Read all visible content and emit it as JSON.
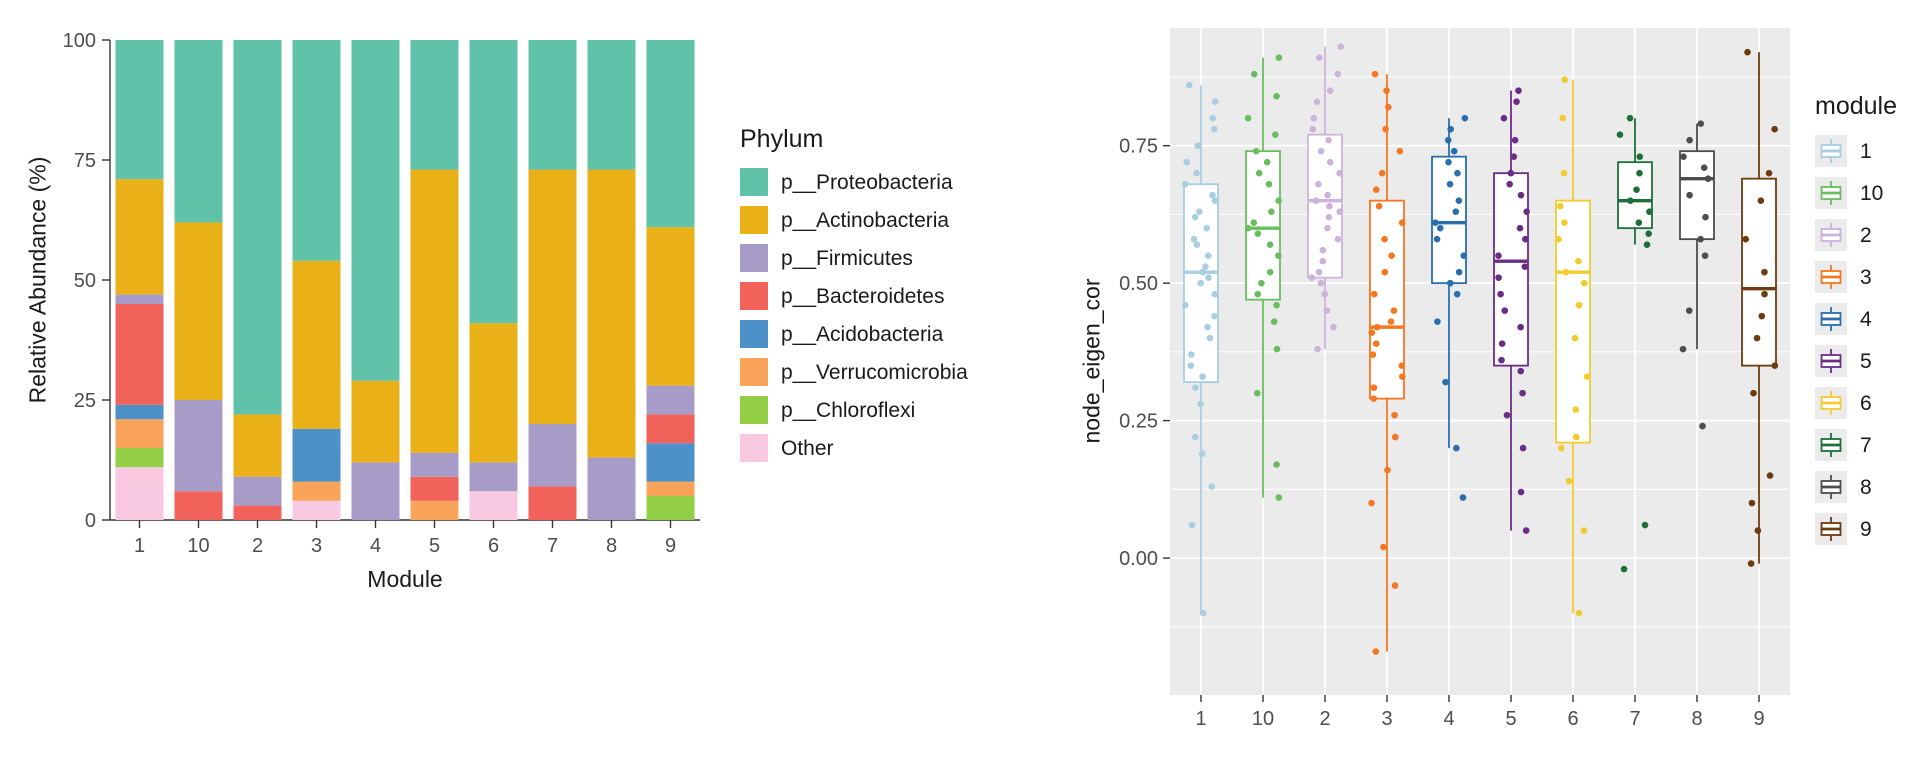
{
  "page": {
    "background": "#FFFFFF"
  },
  "chart_data": [
    {
      "type": "bar",
      "stacked": true,
      "title": "",
      "xlabel": "Module",
      "ylabel": "Relative Abundance (%)",
      "ylim": [
        0,
        100
      ],
      "yticks": [
        {
          "value": 0,
          "label": "0"
        },
        {
          "value": 25,
          "label": "25"
        },
        {
          "value": 50,
          "label": "50"
        },
        {
          "value": 75,
          "label": "75"
        },
        {
          "value": 100,
          "label": "100"
        }
      ],
      "categories": [
        "1",
        "10",
        "2",
        "3",
        "4",
        "5",
        "6",
        "7",
        "8",
        "9"
      ],
      "legend_title": "Phylum",
      "legend_position": "right",
      "grid": false,
      "panel_background": "#FFFFFF",
      "axis_line_color": "#333333",
      "tick_label_color": "#4D4D4D",
      "series": [
        {
          "name": "p__Proteobacteria",
          "color": "#60C2A8",
          "values": [
            29,
            38,
            78,
            46,
            71,
            27,
            59,
            27,
            27,
            39
          ]
        },
        {
          "name": "p__Actinobacteria",
          "color": "#E9B017",
          "values": [
            24,
            37,
            13,
            35,
            17,
            59,
            29,
            53,
            60,
            33
          ]
        },
        {
          "name": "p__Firmicutes",
          "color": "#A79CC8",
          "values": [
            2,
            19,
            6,
            0,
            12,
            5,
            6,
            13,
            13,
            6
          ]
        },
        {
          "name": "p__Bacteroidetes",
          "color": "#F0625A",
          "values": [
            21,
            6,
            3,
            0,
            0,
            5,
            0,
            7,
            0,
            6
          ]
        },
        {
          "name": "p__Acidobacteria",
          "color": "#4D91C9",
          "values": [
            3,
            0,
            0,
            11,
            0,
            0,
            0,
            0,
            0,
            8
          ]
        },
        {
          "name": "p__Verrucomicrobia",
          "color": "#F9A35B",
          "values": [
            6,
            0,
            0,
            4,
            0,
            4,
            0,
            0,
            0,
            3
          ]
        },
        {
          "name": "p__Chloroflexi",
          "color": "#93CE47",
          "values": [
            4,
            0,
            0,
            0,
            0,
            0,
            0,
            0,
            0,
            5
          ]
        },
        {
          "name": "Other",
          "color": "#F9C9E1",
          "values": [
            11,
            0,
            0,
            4,
            0,
            0,
            6,
            0,
            0,
            0
          ]
        }
      ],
      "stack_order": "bottom-to-top is reverse of legend order"
    },
    {
      "type": "boxplot",
      "title": "",
      "xlabel": "",
      "ylabel": "node_eigen_cor",
      "ylim": [
        -0.249,
        0.964
      ],
      "yticks": [
        {
          "value": 0.0,
          "label": "0.00"
        },
        {
          "value": 0.25,
          "label": "0.25"
        },
        {
          "value": 0.5,
          "label": "0.50"
        },
        {
          "value": 0.75,
          "label": "0.75"
        }
      ],
      "categories": [
        "1",
        "10",
        "2",
        "3",
        "4",
        "5",
        "6",
        "7",
        "8",
        "9"
      ],
      "legend_title": "module",
      "legend_position": "right",
      "grid": true,
      "panel_background": "#EBEBEB",
      "grid_color": "#FFFFFF",
      "tick_label_color": "#4D4D4D",
      "groups": [
        {
          "label": "1",
          "color": "#A8CEE2",
          "box": {
            "whisker_low": -0.1,
            "q1": 0.32,
            "median": 0.52,
            "q3": 0.68,
            "whisker_high": 0.86
          },
          "points": [
            -0.1,
            0.06,
            0.13,
            0.19,
            0.22,
            0.28,
            0.31,
            0.33,
            0.35,
            0.37,
            0.4,
            0.42,
            0.44,
            0.46,
            0.48,
            0.5,
            0.51,
            0.52,
            0.53,
            0.55,
            0.57,
            0.58,
            0.6,
            0.62,
            0.63,
            0.65,
            0.66,
            0.68,
            0.7,
            0.72,
            0.75,
            0.78,
            0.8,
            0.83,
            0.86
          ]
        },
        {
          "label": "10",
          "color": "#6ABD5E",
          "box": {
            "whisker_low": 0.11,
            "q1": 0.47,
            "median": 0.6,
            "q3": 0.74,
            "whisker_high": 0.91
          },
          "points": [
            0.11,
            0.17,
            0.3,
            0.38,
            0.43,
            0.46,
            0.48,
            0.5,
            0.52,
            0.55,
            0.57,
            0.59,
            0.6,
            0.61,
            0.63,
            0.65,
            0.68,
            0.7,
            0.72,
            0.74,
            0.77,
            0.8,
            0.84,
            0.88,
            0.91
          ]
        },
        {
          "label": "2",
          "color": "#CDB3DB",
          "box": {
            "whisker_low": 0.38,
            "q1": 0.51,
            "median": 0.65,
            "q3": 0.77,
            "whisker_high": 0.93
          },
          "points": [
            0.38,
            0.42,
            0.45,
            0.48,
            0.5,
            0.51,
            0.52,
            0.54,
            0.56,
            0.58,
            0.6,
            0.62,
            0.63,
            0.64,
            0.65,
            0.66,
            0.68,
            0.7,
            0.72,
            0.74,
            0.76,
            0.78,
            0.8,
            0.83,
            0.85,
            0.88,
            0.91,
            0.93
          ]
        },
        {
          "label": "3",
          "color": "#F47721",
          "box": {
            "whisker_low": -0.17,
            "q1": 0.29,
            "median": 0.42,
            "q3": 0.65,
            "whisker_high": 0.88
          },
          "points": [
            -0.17,
            -0.05,
            0.02,
            0.1,
            0.16,
            0.22,
            0.26,
            0.29,
            0.31,
            0.33,
            0.35,
            0.37,
            0.39,
            0.41,
            0.42,
            0.43,
            0.45,
            0.48,
            0.52,
            0.55,
            0.58,
            0.61,
            0.64,
            0.67,
            0.7,
            0.74,
            0.78,
            0.82,
            0.85,
            0.88
          ]
        },
        {
          "label": "4",
          "color": "#2A6EAD",
          "box": {
            "whisker_low": 0.2,
            "q1": 0.5,
            "median": 0.61,
            "q3": 0.73,
            "whisker_high": 0.8
          },
          "points": [
            0.11,
            0.2,
            0.32,
            0.43,
            0.48,
            0.5,
            0.52,
            0.55,
            0.58,
            0.6,
            0.61,
            0.63,
            0.65,
            0.68,
            0.7,
            0.72,
            0.74,
            0.76,
            0.78,
            0.8
          ]
        },
        {
          "label": "5",
          "color": "#6A2C85",
          "box": {
            "whisker_low": 0.05,
            "q1": 0.35,
            "median": 0.54,
            "q3": 0.7,
            "whisker_high": 0.85
          },
          "points": [
            0.05,
            0.12,
            0.2,
            0.26,
            0.3,
            0.34,
            0.36,
            0.39,
            0.42,
            0.45,
            0.48,
            0.51,
            0.53,
            0.55,
            0.58,
            0.6,
            0.63,
            0.66,
            0.68,
            0.7,
            0.73,
            0.76,
            0.8,
            0.83,
            0.85
          ]
        },
        {
          "label": "6",
          "color": "#F2CB30",
          "box": {
            "whisker_low": -0.1,
            "q1": 0.21,
            "median": 0.52,
            "q3": 0.65,
            "whisker_high": 0.87
          },
          "points": [
            -0.1,
            0.05,
            0.14,
            0.2,
            0.22,
            0.27,
            0.33,
            0.4,
            0.46,
            0.5,
            0.52,
            0.54,
            0.58,
            0.61,
            0.64,
            0.7,
            0.8,
            0.87
          ]
        },
        {
          "label": "7",
          "color": "#1E6E39",
          "box": {
            "whisker_low": 0.57,
            "q1": 0.6,
            "median": 0.65,
            "q3": 0.72,
            "whisker_high": 0.8
          },
          "points": [
            -0.02,
            0.06,
            0.57,
            0.59,
            0.61,
            0.63,
            0.65,
            0.67,
            0.7,
            0.73,
            0.77,
            0.8
          ]
        },
        {
          "label": "8",
          "color": "#4D4D4D",
          "box": {
            "whisker_low": 0.38,
            "q1": 0.58,
            "median": 0.69,
            "q3": 0.74,
            "whisker_high": 0.79
          },
          "points": [
            0.24,
            0.38,
            0.45,
            0.55,
            0.58,
            0.62,
            0.66,
            0.69,
            0.71,
            0.73,
            0.76,
            0.79
          ]
        },
        {
          "label": "9",
          "color": "#6E3B10",
          "box": {
            "whisker_low": -0.01,
            "q1": 0.35,
            "median": 0.49,
            "q3": 0.69,
            "whisker_high": 0.92
          },
          "points": [
            -0.01,
            0.05,
            0.1,
            0.15,
            0.3,
            0.35,
            0.4,
            0.44,
            0.48,
            0.52,
            0.58,
            0.65,
            0.7,
            0.78,
            0.92
          ]
        }
      ]
    }
  ]
}
